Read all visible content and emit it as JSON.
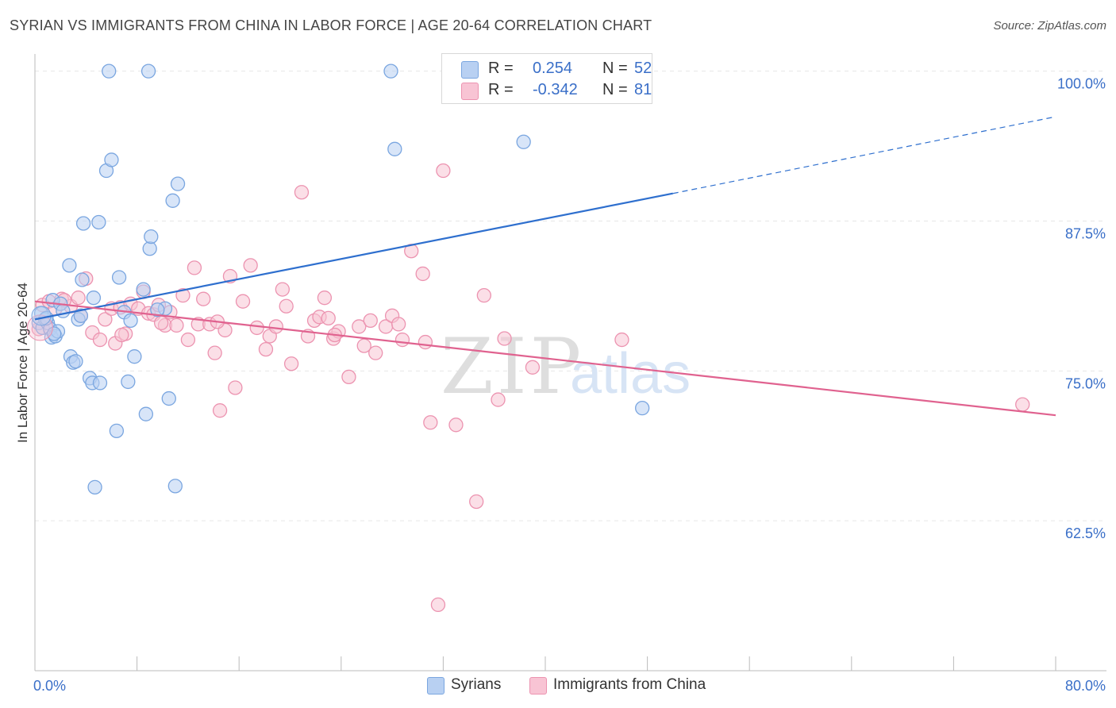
{
  "title": "SYRIAN VS IMMIGRANTS FROM CHINA IN LABOR FORCE | AGE 20-64 CORRELATION CHART",
  "source": "Source: ZipAtlas.com",
  "watermark": {
    "zip": "ZIP",
    "atlas": "atlas"
  },
  "legend_top": {
    "rows": [
      {
        "r_label": "R =",
        "r_value": "0.254",
        "n_label": "N =",
        "n_value": "52"
      },
      {
        "r_label": "R =",
        "r_value": "-0.342",
        "n_label": "N =",
        "n_value": "81"
      }
    ]
  },
  "legend_bottom": {
    "items": [
      {
        "label": "Syrians"
      },
      {
        "label": "Immigrants from China"
      }
    ]
  },
  "colors": {
    "blue_fill": "#b8d0f2",
    "blue_stroke": "#7aa6e0",
    "blue_line": "#2e6fce",
    "pink_fill": "#f8c4d4",
    "pink_stroke": "#ec93b0",
    "pink_line": "#e0628f",
    "tick_text": "#3a6fc8",
    "grid": "#e6e6e6",
    "axis": "#bbbbbb"
  },
  "chart_data": {
    "type": "scatter",
    "title": "SYRIAN VS IMMIGRANTS FROM CHINA IN LABOR FORCE | AGE 20-64 CORRELATION CHART",
    "xlabel": "",
    "ylabel": "In Labor Force | Age 20-64",
    "xlim": [
      0,
      80
    ],
    "ylim": [
      50,
      101.3
    ],
    "x_tick_labels": [
      {
        "value": 0,
        "label": "0.0%"
      },
      {
        "value": 80,
        "label": "80.0%"
      }
    ],
    "x_minor_ticks": [
      0,
      8,
      16,
      24,
      32,
      40,
      48,
      56,
      64,
      72,
      80
    ],
    "y_ticks": [
      {
        "value": 62.5,
        "label": "62.5%"
      },
      {
        "value": 75.0,
        "label": "75.0%"
      },
      {
        "value": 87.5,
        "label": "87.5%"
      },
      {
        "value": 100.0,
        "label": "100.0%"
      }
    ],
    "grid": true,
    "series": [
      {
        "name": "Syrians",
        "r": 0.254,
        "n": 52,
        "trend": {
          "x0": 0,
          "y0": 79.3,
          "x1": 50,
          "y1": 89.8,
          "dashed_to_x": 80,
          "dashed_to_y": 96.2
        },
        "points": [
          [
            0.3,
            79.0
          ],
          [
            0.5,
            79.8
          ],
          [
            0.6,
            78.6
          ],
          [
            0.8,
            79.3
          ],
          [
            1.0,
            79.0
          ],
          [
            1.2,
            78.5
          ],
          [
            1.3,
            77.8
          ],
          [
            1.4,
            80.9
          ],
          [
            1.6,
            77.9
          ],
          [
            1.8,
            78.3
          ],
          [
            2.0,
            80.6
          ],
          [
            2.2,
            80.0
          ],
          [
            2.7,
            83.8
          ],
          [
            2.8,
            76.2
          ],
          [
            3.0,
            75.7
          ],
          [
            3.4,
            79.3
          ],
          [
            3.6,
            79.6
          ],
          [
            3.7,
            82.6
          ],
          [
            3.8,
            87.3
          ],
          [
            4.3,
            74.4
          ],
          [
            4.5,
            74.0
          ],
          [
            4.6,
            81.1
          ],
          [
            5.0,
            87.4
          ],
          [
            5.1,
            74.0
          ],
          [
            5.6,
            91.7
          ],
          [
            5.8,
            100.0
          ],
          [
            6.0,
            92.6
          ],
          [
            6.4,
            70.0
          ],
          [
            6.6,
            82.8
          ],
          [
            7.0,
            79.9
          ],
          [
            7.3,
            74.1
          ],
          [
            7.5,
            79.2
          ],
          [
            7.8,
            76.2
          ],
          [
            8.5,
            81.8
          ],
          [
            8.7,
            71.4
          ],
          [
            8.9,
            100.0
          ],
          [
            9.0,
            85.2
          ],
          [
            9.1,
            86.2
          ],
          [
            10.2,
            80.2
          ],
          [
            10.5,
            72.7
          ],
          [
            10.8,
            89.2
          ],
          [
            11.2,
            90.6
          ],
          [
            11.0,
            65.4
          ],
          [
            4.7,
            65.3
          ],
          [
            27.9,
            100.0
          ],
          [
            28.2,
            93.5
          ],
          [
            38.3,
            94.1
          ],
          [
            47.6,
            71.9
          ],
          [
            0.9,
            79.4
          ],
          [
            1.5,
            78.1
          ],
          [
            3.2,
            75.8
          ],
          [
            9.6,
            80.1
          ]
        ]
      },
      {
        "name": "Immigrants from China",
        "r": -0.342,
        "n": 81,
        "trend": {
          "x0": 0,
          "y0": 80.8,
          "x1": 80,
          "y1": 71.3
        },
        "points": [
          [
            0.3,
            78.5
          ],
          [
            0.6,
            80.5
          ],
          [
            1.1,
            80.8
          ],
          [
            1.6,
            80.2
          ],
          [
            2.1,
            81.0
          ],
          [
            2.8,
            80.4
          ],
          [
            3.4,
            81.1
          ],
          [
            3.6,
            79.6
          ],
          [
            4.0,
            82.7
          ],
          [
            4.5,
            78.2
          ],
          [
            5.1,
            77.6
          ],
          [
            5.5,
            79.3
          ],
          [
            6.0,
            80.2
          ],
          [
            6.3,
            77.3
          ],
          [
            6.7,
            80.3
          ],
          [
            7.1,
            78.1
          ],
          [
            7.5,
            80.6
          ],
          [
            8.1,
            80.2
          ],
          [
            8.5,
            81.6
          ],
          [
            8.9,
            79.8
          ],
          [
            9.3,
            79.7
          ],
          [
            9.7,
            80.5
          ],
          [
            10.2,
            78.8
          ],
          [
            10.6,
            79.9
          ],
          [
            11.1,
            78.8
          ],
          [
            11.6,
            81.3
          ],
          [
            12.0,
            77.6
          ],
          [
            12.5,
            83.6
          ],
          [
            12.8,
            78.9
          ],
          [
            13.2,
            81.0
          ],
          [
            13.7,
            78.9
          ],
          [
            14.1,
            76.5
          ],
          [
            14.5,
            71.7
          ],
          [
            14.9,
            78.4
          ],
          [
            15.3,
            82.9
          ],
          [
            15.7,
            73.6
          ],
          [
            16.3,
            80.8
          ],
          [
            16.9,
            83.8
          ],
          [
            17.4,
            78.6
          ],
          [
            18.1,
            76.8
          ],
          [
            18.4,
            77.9
          ],
          [
            18.9,
            78.7
          ],
          [
            19.4,
            81.8
          ],
          [
            19.7,
            80.4
          ],
          [
            20.1,
            75.6
          ],
          [
            20.9,
            89.9
          ],
          [
            21.4,
            77.9
          ],
          [
            21.9,
            79.2
          ],
          [
            22.3,
            79.5
          ],
          [
            22.7,
            81.1
          ],
          [
            23.0,
            79.4
          ],
          [
            23.4,
            77.7
          ],
          [
            23.8,
            78.3
          ],
          [
            24.6,
            74.5
          ],
          [
            25.4,
            78.7
          ],
          [
            25.8,
            77.1
          ],
          [
            26.3,
            79.2
          ],
          [
            26.7,
            76.5
          ],
          [
            27.5,
            78.7
          ],
          [
            28.0,
            79.6
          ],
          [
            28.5,
            78.9
          ],
          [
            28.8,
            77.6
          ],
          [
            29.5,
            85.0
          ],
          [
            30.4,
            83.1
          ],
          [
            30.6,
            77.4
          ],
          [
            31.0,
            70.7
          ],
          [
            32.0,
            91.7
          ],
          [
            33.0,
            70.5
          ],
          [
            34.6,
            64.1
          ],
          [
            35.2,
            81.3
          ],
          [
            36.3,
            72.6
          ],
          [
            36.8,
            77.7
          ],
          [
            39.0,
            75.3
          ],
          [
            46.0,
            77.6
          ],
          [
            77.4,
            72.2
          ],
          [
            23.5,
            78.0
          ],
          [
            31.6,
            55.5
          ],
          [
            2.3,
            80.9
          ],
          [
            6.8,
            78.0
          ],
          [
            9.9,
            79.0
          ],
          [
            14.3,
            79.1
          ]
        ]
      }
    ]
  }
}
